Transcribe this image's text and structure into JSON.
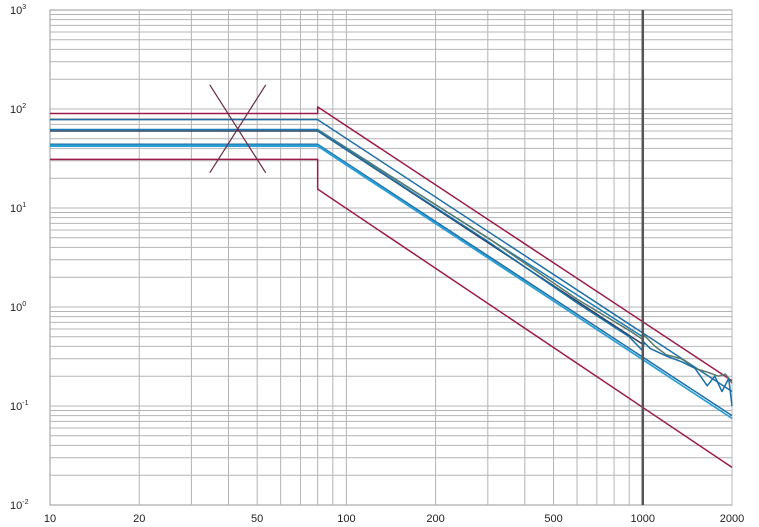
{
  "chart_data": {
    "type": "line",
    "title": "",
    "xlabel": "",
    "ylabel": "",
    "xscale": "log",
    "yscale": "log",
    "xlim": [
      10,
      2000
    ],
    "ylim": [
      0.01,
      1000
    ],
    "grid": true,
    "x_ticks": [
      {
        "value": 10,
        "label": "10"
      },
      {
        "value": 20,
        "label": "20"
      },
      {
        "value": 50,
        "label": "50"
      },
      {
        "value": 100,
        "label": "100"
      },
      {
        "value": 200,
        "label": "200"
      },
      {
        "value": 500,
        "label": "500"
      },
      {
        "value": 1000,
        "label": "1000"
      },
      {
        "value": 2000,
        "label": "2000"
      }
    ],
    "y_ticks": [
      {
        "value": 0.01,
        "base": "10",
        "exp": "-2"
      },
      {
        "value": 0.1,
        "base": "10",
        "exp": "-1"
      },
      {
        "value": 1,
        "base": "10",
        "exp": "0"
      },
      {
        "value": 10,
        "base": "10",
        "exp": "1"
      },
      {
        "value": 100,
        "base": "10",
        "exp": "2"
      },
      {
        "value": 1000,
        "base": "10",
        "exp": "3"
      }
    ],
    "vertical_marker": {
      "x": 1000,
      "color": "#555555"
    },
    "cross_marker": {
      "x": 43,
      "y": 63,
      "color": "#6b2a42"
    },
    "series": [
      {
        "color": "#9b1b4b",
        "x": [
          10,
          80,
          80,
          2000
        ],
        "y": [
          90,
          90,
          105,
          0.18
        ]
      },
      {
        "color": "#9b1b4b",
        "x": [
          10,
          80,
          80,
          2000
        ],
        "y": [
          31,
          31,
          15.5,
          0.024
        ]
      },
      {
        "color": "#1f6fa8",
        "x": [
          10,
          80,
          2000
        ],
        "y": [
          78,
          78,
          0.14
        ]
      },
      {
        "color": "#1f6fa8",
        "x": [
          10,
          80,
          2000
        ],
        "y": [
          44,
          44,
          0.08
        ]
      },
      {
        "color": "#2a9fd6",
        "x": [
          10,
          80,
          2000
        ],
        "y": [
          42,
          42,
          0.075
        ]
      },
      {
        "color": "#2e3f5c",
        "x": [
          10,
          80,
          1000
        ],
        "y": [
          60,
          60,
          0.42
        ]
      },
      {
        "color": "#1a7ab5",
        "x": [
          10,
          80,
          1000
        ],
        "y": [
          62,
          62,
          0.5
        ]
      },
      {
        "color": "#2a9fd6",
        "x": [
          10,
          80,
          2000
        ],
        "y": [
          43,
          43,
          0.075
        ]
      }
    ],
    "measured_series": [
      {
        "color": "#5a7a6a",
        "x": [
          80,
          300,
          600,
          900,
          1000,
          1010,
          1100,
          1200,
          1350,
          1500,
          1650,
          1800,
          1900,
          1950,
          2000
        ],
        "y": [
          61,
          5.0,
          1.2,
          0.58,
          0.47,
          0.52,
          0.4,
          0.33,
          0.3,
          0.24,
          0.22,
          0.2,
          0.21,
          0.19,
          0.17
        ]
      },
      {
        "color": "#1a6fa8",
        "x": [
          80,
          300,
          600,
          900,
          1000,
          1010,
          1060,
          1200,
          1350,
          1500,
          1650,
          1750,
          1850,
          1950,
          2000
        ],
        "y": [
          60,
          4.6,
          1.1,
          0.5,
          0.36,
          0.44,
          0.38,
          0.32,
          0.28,
          0.24,
          0.16,
          0.2,
          0.14,
          0.19,
          0.1
        ]
      }
    ]
  }
}
